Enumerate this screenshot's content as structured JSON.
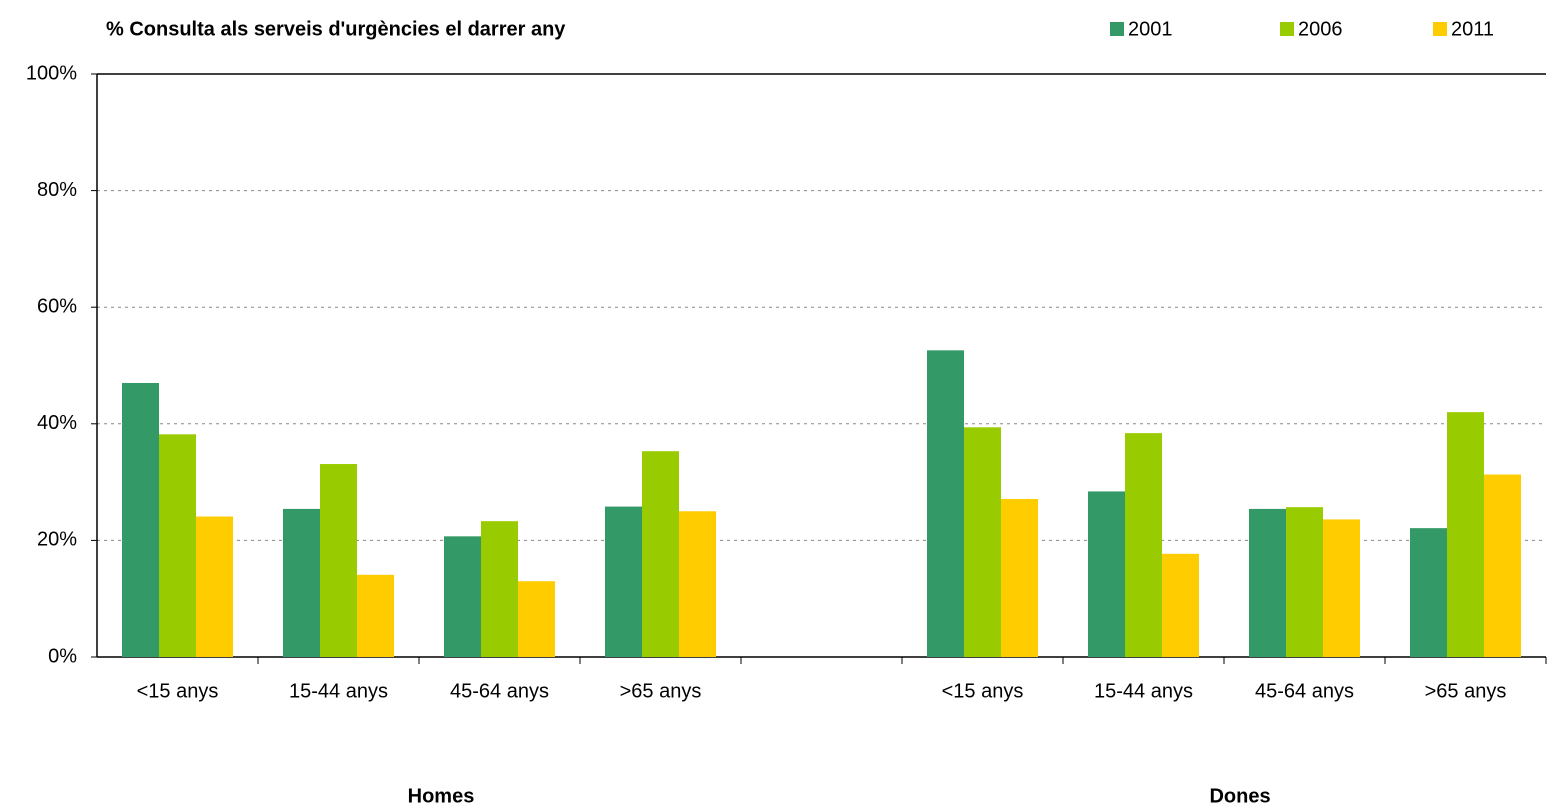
{
  "chart_data": {
    "type": "bar",
    "title": "% Consulta als serveis d'urgències el darrer any",
    "categories": [
      "<15 anys",
      "15-44 anys",
      "45-64 anys",
      ">65 anys",
      null,
      "<15 anys",
      "15-44 anys",
      "45-64 anys",
      ">65 anys"
    ],
    "group_labels": [
      "Homes",
      "Dones"
    ],
    "series": [
      {
        "name": "2001",
        "color": "#339966",
        "values": [
          47.0,
          25.4,
          20.7,
          25.8,
          null,
          52.6,
          28.4,
          25.4,
          22.1
        ]
      },
      {
        "name": "2006",
        "color": "#99cc00",
        "values": [
          38.2,
          33.1,
          23.3,
          35.3,
          null,
          39.4,
          38.4,
          25.7,
          42.0
        ]
      },
      {
        "name": "2011",
        "color": "#ffcc00",
        "values": [
          24.1,
          14.1,
          13.0,
          25.0,
          null,
          27.1,
          17.7,
          23.6,
          31.3
        ]
      }
    ],
    "ylim": [
      0,
      100
    ],
    "yticks": [
      {
        "value": 0,
        "label": "0%"
      },
      {
        "value": 20,
        "label": "20%"
      },
      {
        "value": 40,
        "label": "40%"
      },
      {
        "value": 60,
        "label": "60%"
      },
      {
        "value": 80,
        "label": "80%"
      },
      {
        "value": 100,
        "label": "100%"
      }
    ],
    "grid": true
  }
}
